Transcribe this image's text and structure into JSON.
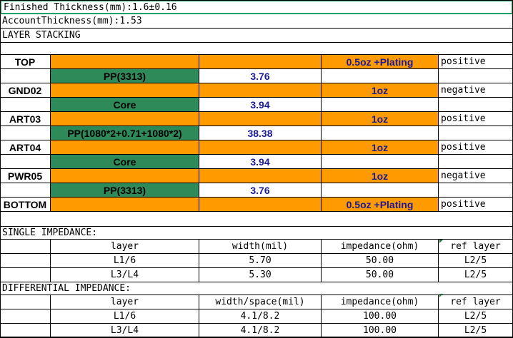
{
  "header": {
    "finished_thickness": "Finished Thickness(mm):1.6±0.16",
    "account_thickness": "AccountThickness(mm):1.53",
    "stacking_title": "LAYER STACKING"
  },
  "layers": [
    {
      "name": "TOP",
      "copper": "0.5oz +Plating",
      "polarity": "positive"
    },
    {
      "name": "GND02",
      "copper": "1oz",
      "polarity": "negative"
    },
    {
      "name": "ART03",
      "copper": "1oz",
      "polarity": "positive"
    },
    {
      "name": "ART04",
      "copper": "1oz",
      "polarity": "positive"
    },
    {
      "name": "PWR05",
      "copper": "1oz",
      "polarity": "negative"
    },
    {
      "name": "BOTTOM",
      "copper": "0.5oz +Plating",
      "polarity": "positive"
    }
  ],
  "dielectrics": [
    {
      "material": "PP(3313)",
      "thickness": "3.76"
    },
    {
      "material": "Core",
      "thickness": "3.94"
    },
    {
      "material": "PP(1080*2+0.71+1080*2)",
      "thickness": "38.38"
    },
    {
      "material": "Core",
      "thickness": "3.94"
    },
    {
      "material": "PP(3313)",
      "thickness": "3.76"
    }
  ],
  "single_impedance": {
    "title": "SINGLE   IMPEDANCE:",
    "headers": [
      "layer",
      "width(mil)",
      "impedance(ohm)",
      "ref layer"
    ],
    "rows": [
      [
        "L1/6",
        "5.70",
        "50.00",
        "L2/5"
      ],
      [
        "L3/L4",
        "5.30",
        "50.00",
        "L2/5"
      ]
    ]
  },
  "differential_impedance": {
    "title": "DIFFERENTIAL   IMPEDANCE:",
    "headers": [
      "layer",
      "width/space(mil)",
      "impedance(ohm)",
      "ref layer"
    ],
    "rows": [
      [
        "L1/6",
        "4.1/8.2",
        "100.00",
        "L2/5"
      ],
      [
        "L3/L4",
        "4.1/8.2",
        "100.00",
        "L2/5"
      ]
    ]
  },
  "colors": {
    "copper": "#ff9a00",
    "dielectric": "#2f8a5a",
    "value_text": "#1a1a9a",
    "selection": "#1aa06a"
  }
}
